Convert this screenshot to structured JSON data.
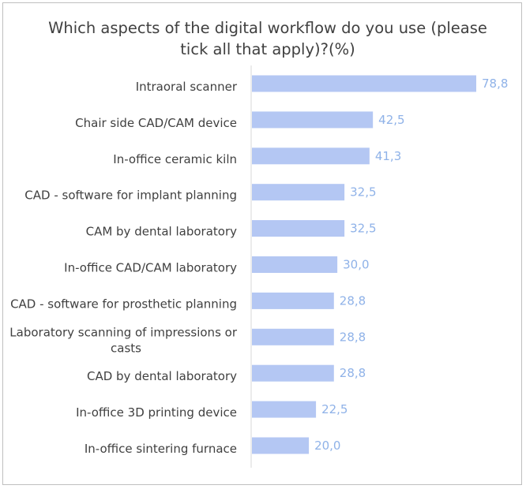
{
  "chart_data": {
    "type": "bar",
    "orientation": "horizontal",
    "title_lines": [
      "Which aspects of the digital workflow do you use (please",
      "tick all that apply)?(%)"
    ],
    "categories": [
      [
        "Intraoral scanner"
      ],
      [
        "Chair side CAD/CAM device"
      ],
      [
        "In-office ceramic kiln"
      ],
      [
        "CAD - software for implant planning"
      ],
      [
        "CAM by dental laboratory"
      ],
      [
        "In-office CAD/CAM laboratory"
      ],
      [
        "CAD - software for prosthetic planning"
      ],
      [
        "Laboratory scanning of impressions or",
        "casts"
      ],
      [
        "CAD by dental laboratory"
      ],
      [
        "In-office 3D printing device"
      ],
      [
        "In-office sintering furnace"
      ]
    ],
    "values": [
      78.8,
      42.5,
      41.3,
      32.5,
      32.5,
      30.0,
      28.8,
      28.8,
      28.8,
      22.5,
      20.0
    ],
    "value_labels": [
      "78,8",
      "42,5",
      "41,3",
      "32,5",
      "32,5",
      "30,0",
      "28,8",
      "28,8",
      "28,8",
      "22,5",
      "20,0"
    ],
    "xlim": [
      0,
      78.8
    ],
    "grid": false,
    "legend": "none",
    "colors": {
      "bar": "#b4c7f3",
      "value_label": "#8fb2e8",
      "axis": "#d9d9d9",
      "text": "#404040"
    }
  }
}
